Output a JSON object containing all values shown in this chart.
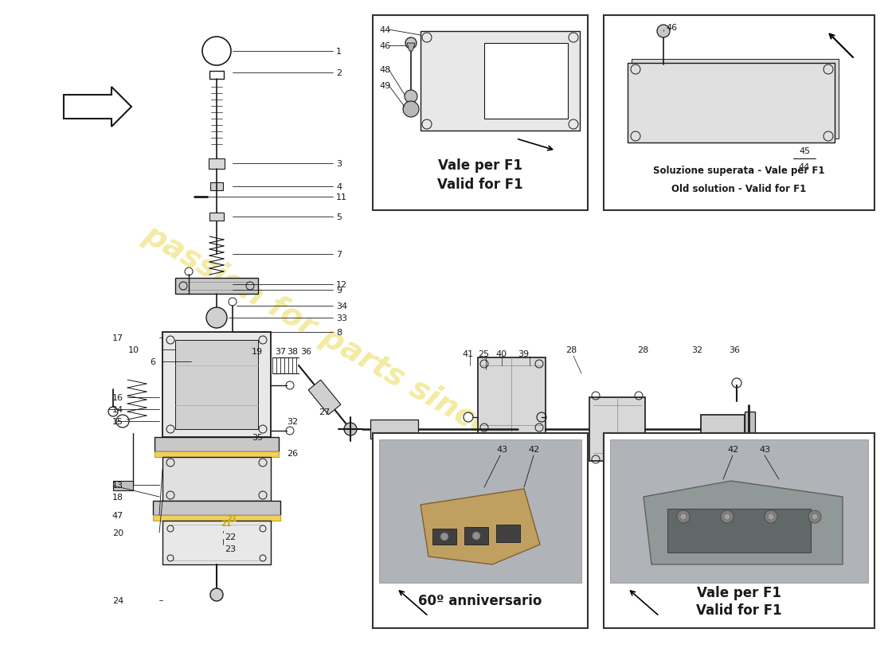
{
  "bg_color": "#ffffff",
  "line_color": "#1a1a1a",
  "watermark_text": "passion for parts since 196",
  "watermark_color": "#e8d84a",
  "box1_label1": "Vale per F1",
  "box1_label2": "Valid for F1",
  "box2_label1": "Soluzione superata - Vale per F1",
  "box2_label2": "Old solution - Valid for F1",
  "box3_label1": "60º anniversario",
  "box4_label1": "Vale per F1",
  "box4_label2": "Valid for F1",
  "fig_width": 11.0,
  "fig_height": 8.0,
  "dpi": 100
}
